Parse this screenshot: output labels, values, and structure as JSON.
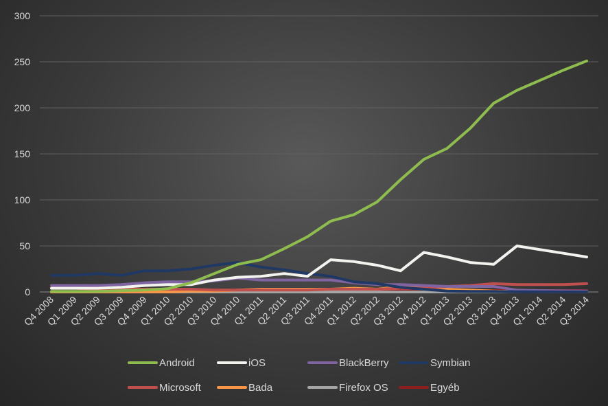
{
  "chart_data": {
    "type": "line",
    "title": "",
    "xlabel": "",
    "ylabel": "",
    "ylim": [
      0,
      300
    ],
    "yticks": [
      "0",
      "50",
      "100",
      "150",
      "200",
      "250",
      "300"
    ],
    "grid": "horizontal",
    "legend_position": "bottom",
    "categories": [
      "Q4 2008",
      "Q1 2009",
      "Q2 2009",
      "Q3 2009",
      "Q4 2009",
      "Q1 2010",
      "Q2 2010",
      "Q3 2010",
      "Q4 2010",
      "Q1 2011",
      "Q2 2011",
      "Q3 2011",
      "Q4 2011",
      "Q1 2012",
      "Q2 2012",
      "Q3 2012",
      "Q4 2012",
      "Q1 2013",
      "Q2 2013",
      "Q3 2013",
      "Q4 2013",
      "Q1 2014",
      "Q2 2014",
      "Q3 2014"
    ],
    "series": [
      {
        "name": "Android",
        "color": "#8fbc4f",
        "values": [
          0.6,
          0.6,
          0.6,
          1.4,
          2.1,
          3.5,
          10,
          20,
          30,
          35,
          47,
          60,
          77,
          84,
          98,
          122,
          144,
          156,
          178,
          205,
          219,
          230,
          241,
          251
        ]
      },
      {
        "name": "iOS",
        "color": "#f2f2ee",
        "values": [
          4,
          4,
          4,
          5,
          7,
          8,
          8,
          13,
          16,
          17,
          20,
          17,
          35,
          33,
          29,
          23,
          43,
          38,
          32,
          30,
          50,
          46,
          42,
          38
        ]
      },
      {
        "name": "BlackBerry",
        "color": "#8064a2",
        "values": [
          7,
          7,
          7,
          8,
          10,
          11,
          11,
          12,
          15,
          13,
          13,
          13,
          13,
          10,
          8,
          8,
          7,
          6,
          6,
          6,
          2,
          1.5,
          1.2,
          1
        ]
      },
      {
        "name": "Symbian",
        "color": "#1f3864",
        "values": [
          18,
          18,
          20,
          18,
          23,
          23,
          25,
          29,
          32,
          27,
          24,
          20,
          17,
          11,
          9,
          5,
          3,
          1,
          0.6,
          0.5,
          0.3,
          0.2,
          0.1,
          0.1
        ]
      },
      {
        "name": "Microsoft",
        "color": "#c0504d",
        "values": [
          4,
          4,
          3,
          3,
          3,
          3,
          3,
          2,
          2,
          2,
          2,
          2,
          3,
          3,
          3,
          4,
          4,
          6,
          7,
          9,
          8,
          8,
          8,
          9
        ]
      },
      {
        "name": "Bada",
        "color": "#f79646",
        "values": [
          0,
          0,
          0,
          0,
          0,
          0,
          1,
          1,
          2,
          3,
          3,
          3,
          3,
          4,
          3,
          6,
          4,
          3,
          2,
          1,
          0.5,
          0.3,
          0.2,
          0.1
        ]
      },
      {
        "name": "Firefox OS",
        "color": "#a5a5a5",
        "values": [
          0,
          0,
          0,
          0,
          0,
          0,
          0,
          0,
          0,
          0,
          0,
          0,
          0,
          0,
          0,
          0,
          0,
          0,
          0,
          0.1,
          0.3,
          0.5,
          0.6,
          0.7
        ]
      },
      {
        "name": "Egyéb",
        "color": "#8b1f1f",
        "values": [
          5,
          5,
          5,
          4,
          3,
          3,
          2,
          2,
          2,
          2,
          2,
          1.5,
          1.5,
          1.5,
          1.5,
          1.5,
          1.5,
          1.5,
          1.5,
          1.5,
          1.5,
          1.5,
          1.5,
          1.5
        ]
      }
    ]
  }
}
